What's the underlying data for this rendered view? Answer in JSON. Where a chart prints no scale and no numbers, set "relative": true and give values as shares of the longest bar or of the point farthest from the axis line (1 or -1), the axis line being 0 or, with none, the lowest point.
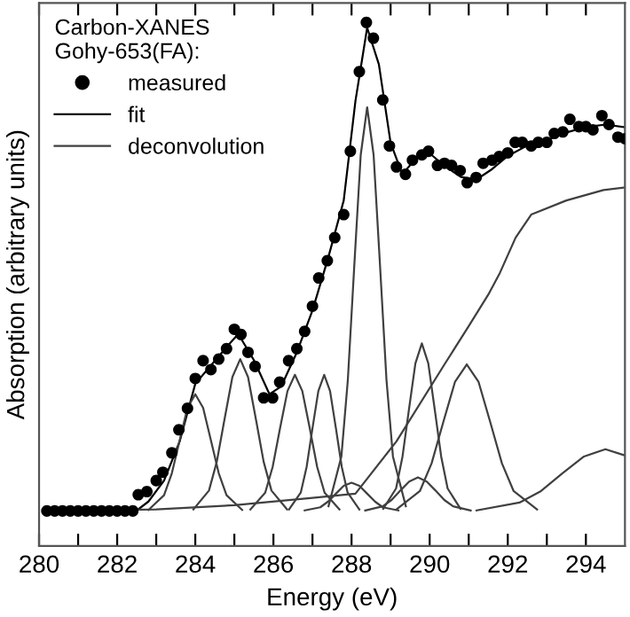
{
  "chart_data": {
    "type": "line",
    "relative": true,
    "xlabel": "Energy (eV)",
    "ylabel": "Absorption (arbitrary units)",
    "legend_title": "Carbon-XANES\nGohy-653(FA):",
    "legend": "top left",
    "grid": false,
    "xlim": [
      280,
      295
    ],
    "xticks": [
      280,
      {
        "value": 281,
        "label": null
      },
      282,
      {
        "value": 283,
        "label": null
      },
      284,
      {
        "value": 285,
        "label": null
      },
      286,
      {
        "value": 287,
        "label": null
      },
      288,
      {
        "value": 289,
        "label": null
      },
      290,
      {
        "value": 291,
        "label": null
      },
      292,
      {
        "value": 293,
        "label": null
      },
      294
    ],
    "series": [
      {
        "name": "measured",
        "type": "scatter",
        "marker": "circle",
        "color": "#000000",
        "x": [
          280.2,
          280.4,
          280.6,
          280.8,
          281.0,
          281.2,
          281.4,
          281.6,
          281.8,
          282.0,
          282.2,
          282.4,
          282.54,
          282.76,
          283.0,
          283.17,
          283.4,
          283.58,
          283.8,
          284.0,
          284.2,
          284.4,
          284.6,
          284.8,
          285.0,
          285.17,
          285.35,
          285.53,
          285.75,
          285.98,
          286.16,
          286.39,
          286.6,
          286.8,
          287.0,
          287.16,
          287.38,
          287.57,
          287.8,
          287.97,
          288.2,
          288.38,
          288.56,
          288.8,
          288.97,
          289.15,
          289.38,
          289.56,
          289.8,
          289.97,
          290.2,
          290.38,
          290.56,
          290.78,
          290.96,
          291.19,
          291.37,
          291.6,
          291.78,
          292.0,
          292.19,
          292.37,
          292.6,
          292.78,
          293.0,
          293.19,
          293.41,
          293.59,
          293.82,
          294.0,
          294.18,
          294.41,
          294.59,
          294.82,
          295.0
        ],
        "values": [
          0.067,
          0.067,
          0.067,
          0.067,
          0.067,
          0.067,
          0.067,
          0.067,
          0.067,
          0.067,
          0.067,
          0.067,
          0.098,
          0.104,
          0.125,
          0.141,
          0.178,
          0.222,
          0.263,
          0.32,
          0.354,
          0.337,
          0.357,
          0.377,
          0.414,
          0.404,
          0.37,
          0.343,
          0.283,
          0.283,
          0.313,
          0.354,
          0.377,
          0.41,
          0.458,
          0.512,
          0.545,
          0.589,
          0.633,
          0.754,
          0.906,
          1.0,
          0.97,
          0.852,
          0.764,
          0.724,
          0.71,
          0.737,
          0.747,
          0.754,
          0.727,
          0.731,
          0.727,
          0.717,
          0.694,
          0.704,
          0.731,
          0.737,
          0.744,
          0.751,
          0.771,
          0.771,
          0.764,
          0.771,
          0.771,
          0.788,
          0.791,
          0.815,
          0.801,
          0.801,
          0.795,
          0.822,
          0.805,
          0.781,
          0.778
        ]
      },
      {
        "name": "fit",
        "color": "#000000",
        "x": [
          280.2,
          282.5,
          282.8,
          283.2,
          283.6,
          284.0,
          284.4,
          284.8,
          285.1,
          285.5,
          285.9,
          286.2,
          286.6,
          287.0,
          287.4,
          287.8,
          288.1,
          288.4,
          288.7,
          289.0,
          289.3,
          289.7,
          290.0,
          290.4,
          290.8,
          291.2,
          291.6,
          292.0,
          292.5,
          293.0,
          293.5,
          294.0,
          294.5,
          295.0
        ],
        "values": [
          0.067,
          0.068,
          0.085,
          0.125,
          0.2,
          0.31,
          0.345,
          0.38,
          0.405,
          0.355,
          0.29,
          0.305,
          0.37,
          0.45,
          0.55,
          0.66,
          0.85,
          0.99,
          0.92,
          0.77,
          0.71,
          0.745,
          0.75,
          0.725,
          0.705,
          0.7,
          0.72,
          0.745,
          0.765,
          0.775,
          0.79,
          0.8,
          0.805,
          0.8
        ]
      },
      {
        "name": "deconvolution",
        "color": "#404040",
        "x": [
          280.2,
          283.0,
          285.0,
          287.0,
          288.1,
          289.15,
          290.38,
          291.0,
          291.5,
          291.8,
          292.2,
          292.6,
          293.5,
          294.45,
          295.0
        ],
        "values": [
          0.067,
          0.07,
          0.078,
          0.092,
          0.1,
          0.2,
          0.347,
          0.42,
          0.48,
          0.522,
          0.589,
          0.633,
          0.66,
          0.68,
          0.685
        ]
      },
      {
        "color": "#404040",
        "x": [
          282.8,
          283.2,
          283.4,
          283.6,
          283.8,
          284.0,
          284.2,
          284.4,
          284.6,
          284.8,
          285.2
        ],
        "values": [
          0.069,
          0.097,
          0.139,
          0.202,
          0.264,
          0.29,
          0.264,
          0.202,
          0.139,
          0.097,
          0.069
        ]
      },
      {
        "color": "#404040",
        "x": [
          283.95,
          284.35,
          284.55,
          284.75,
          284.95,
          285.15,
          285.35,
          285.55,
          285.75,
          285.95,
          286.35
        ],
        "values": [
          0.07,
          0.106,
          0.161,
          0.243,
          0.323,
          0.357,
          0.323,
          0.243,
          0.161,
          0.106,
          0.07
        ]
      },
      {
        "color": "#404040",
        "x": [
          285.41,
          285.79,
          285.98,
          286.17,
          286.36,
          286.55,
          286.74,
          286.93,
          287.12,
          287.31,
          287.69
        ],
        "values": [
          0.07,
          0.102,
          0.151,
          0.225,
          0.296,
          0.327,
          0.296,
          0.225,
          0.151,
          0.102,
          0.07
        ]
      },
      {
        "color": "#404040",
        "x": [
          286.4,
          286.7,
          286.85,
          287.0,
          287.15,
          287.3,
          287.45,
          287.6,
          287.75,
          287.9,
          288.2
        ],
        "values": [
          0.07,
          0.102,
          0.151,
          0.225,
          0.296,
          0.327,
          0.296,
          0.225,
          0.151,
          0.102,
          0.07
        ]
      },
      {
        "color": "#404040",
        "x": [
          287.41,
          287.74,
          287.905,
          288.07,
          288.235,
          288.4,
          288.565,
          288.73,
          288.895,
          289.06,
          289.39
        ],
        "values": [
          0.076,
          0.171,
          0.317,
          0.535,
          0.747,
          0.838,
          0.747,
          0.535,
          0.317,
          0.171,
          0.076
        ]
      },
      {
        "color": "#404040",
        "x": [
          286.8,
          287.2,
          287.4,
          287.6,
          287.8,
          288.0,
          288.2,
          288.4,
          288.6,
          288.8,
          289.2
        ],
        "values": [
          0.068,
          0.074,
          0.085,
          0.1,
          0.115,
          0.121,
          0.115,
          0.1,
          0.085,
          0.074,
          0.068
        ]
      },
      {
        "color": "#404040",
        "x": [
          288.81,
          289.14,
          289.305,
          289.47,
          289.635,
          289.8,
          289.965,
          290.13,
          290.295,
          290.46,
          290.79
        ],
        "values": [
          0.071,
          0.11,
          0.171,
          0.261,
          0.349,
          0.387,
          0.349,
          0.261,
          0.171,
          0.11,
          0.071
        ]
      },
      {
        "color": "#404040",
        "x": [
          288.35,
          288.8,
          289.025,
          289.25,
          289.475,
          289.7,
          289.925,
          290.15,
          290.375,
          290.6,
          291.05
        ],
        "values": [
          0.068,
          0.076,
          0.088,
          0.106,
          0.123,
          0.131,
          0.123,
          0.106,
          0.088,
          0.076,
          0.068
        ]
      },
      {
        "color": "#404040",
        "x": [
          289.15,
          289.75,
          290.05,
          290.35,
          290.65,
          290.95,
          291.25,
          291.55,
          291.85,
          292.15,
          292.75
        ],
        "values": [
          0.07,
          0.105,
          0.158,
          0.237,
          0.314,
          0.347,
          0.314,
          0.237,
          0.158,
          0.105,
          0.07
        ]
      },
      {
        "color": "#404040",
        "x": [
          291.2,
          292.3,
          292.85,
          293.4,
          293.95,
          294.5,
          295.0
        ],
        "values": [
          0.068,
          0.083,
          0.105,
          0.139,
          0.171,
          0.185,
          0.173
        ]
      }
    ]
  }
}
